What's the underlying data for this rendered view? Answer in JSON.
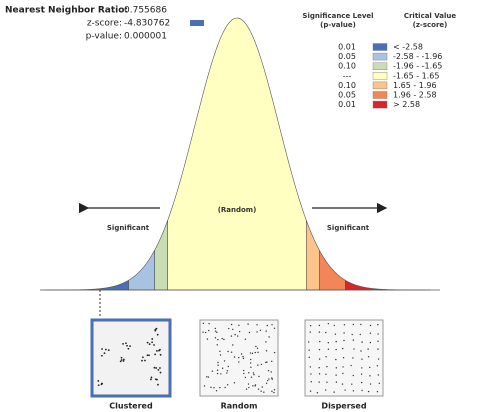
{
  "stats": [
    {
      "label": "Nearest Neighbor Ratio:",
      "value": "0.755686"
    },
    {
      "label": "z-score:",
      "value": "-4.830762"
    },
    {
      "label": "p-value:",
      "value": "0.000001"
    }
  ],
  "legend": {
    "p_header": [
      "Significance Level",
      "(p-value)"
    ],
    "z_header": [
      "Critical Value",
      "(z-score)"
    ],
    "rows": [
      {
        "p": "0.01",
        "z": "< -2.58",
        "color": "#4a6fb3"
      },
      {
        "p": "0.05",
        "z": "-2.58 - -1.96",
        "color": "#a8c3e2"
      },
      {
        "p": "0.10",
        "z": "-1.96 - -1.65",
        "color": "#c9ddb3"
      },
      {
        "p": "---",
        "z": "-1.65 - 1.65",
        "color": "#ffffc2"
      },
      {
        "p": "0.10",
        "z": "1.65 - 1.96",
        "color": "#fcc48a"
      },
      {
        "p": "0.05",
        "z": "1.96 - 2.58",
        "color": "#f38558"
      },
      {
        "p": "0.01",
        "z": "> 2.58",
        "color": "#d7262a"
      }
    ]
  },
  "curve": {
    "left": "Significant",
    "center": "(Random)",
    "right": "Significant"
  },
  "patterns": [
    "Clustered",
    "Random",
    "Dispersed"
  ]
}
